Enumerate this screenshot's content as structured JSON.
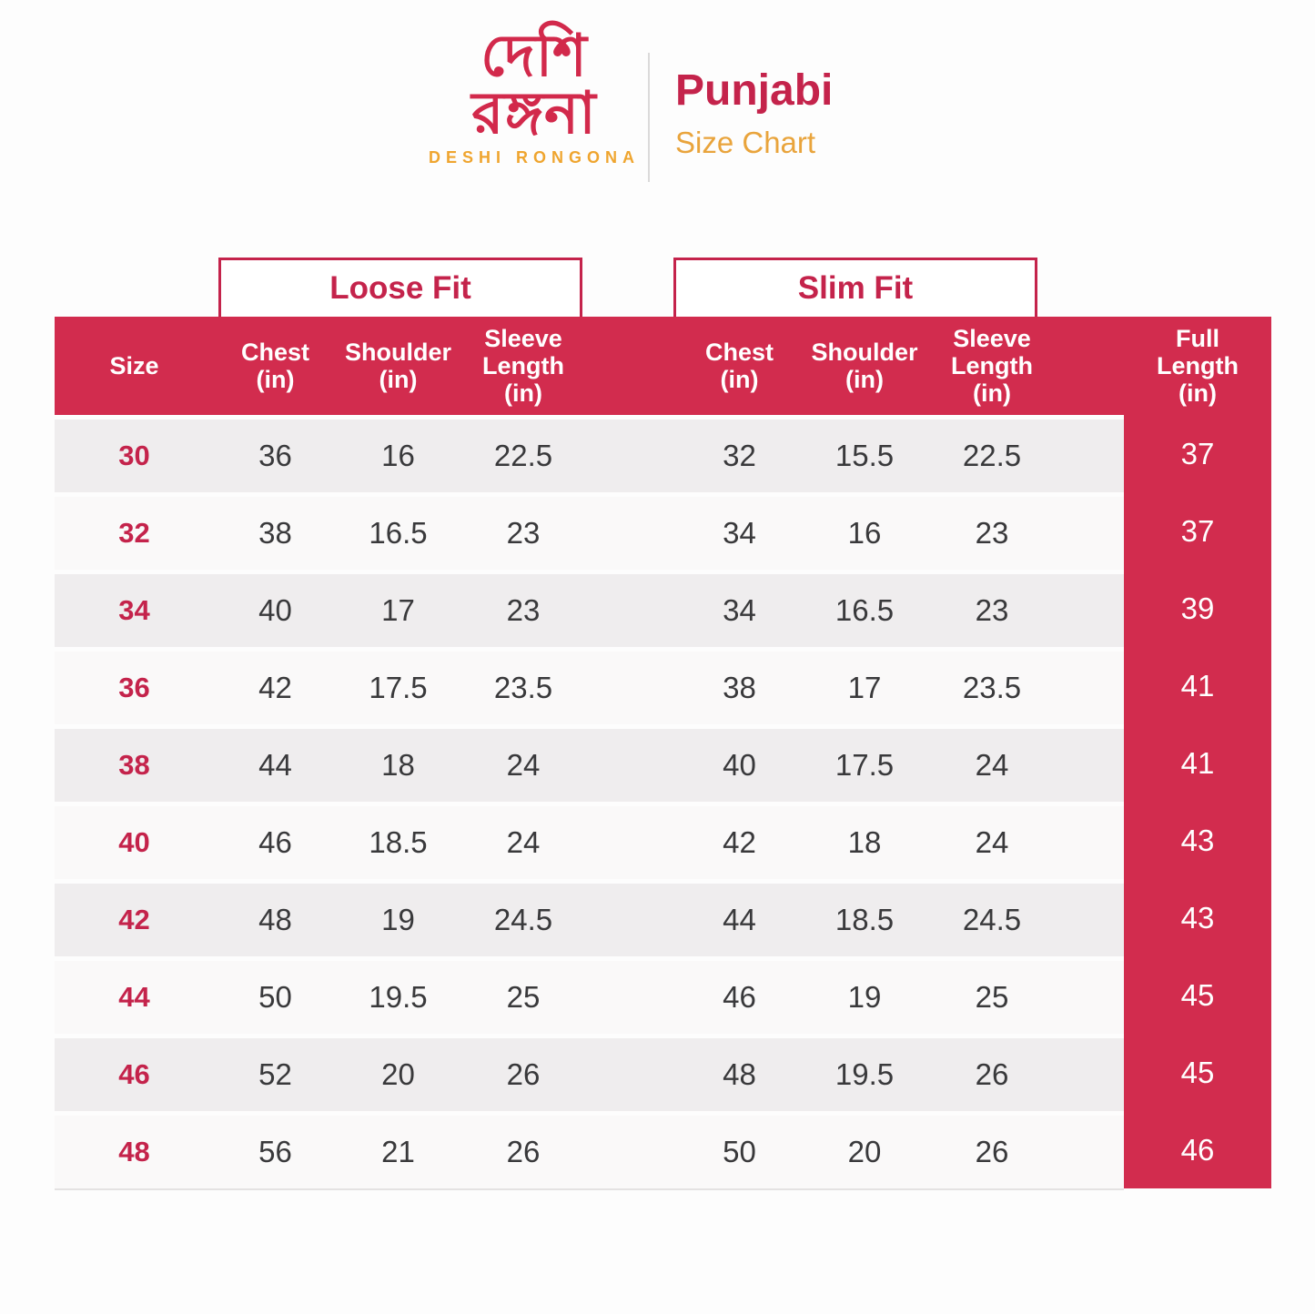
{
  "brand": {
    "logo_text_bengali": "দেশি\nরঙ্গনা",
    "logo_text_english": "DESHI RONGONA"
  },
  "header": {
    "title": "Punjabi",
    "subtitle": "Size Chart"
  },
  "fit_groups": [
    {
      "label": "Loose Fit"
    },
    {
      "label": "Slim Fit"
    }
  ],
  "table_header": {
    "labels": [
      "Size",
      "Chest\n(in)",
      "Shoulder\n(in)",
      "Sleeve\nLength\n(in)",
      "Chest\n(in)",
      "Shoulder\n(in)",
      "Sleeve\nLength\n(in)",
      "Full\nLength\n(in)"
    ]
  },
  "chart_data": {
    "type": "table",
    "title": "Punjabi Size Chart",
    "column_groups": [
      {
        "label": "Loose Fit",
        "columns": [
          "Chest (in)",
          "Shoulder (in)",
          "Sleeve Length (in)"
        ]
      },
      {
        "label": "Slim Fit",
        "columns": [
          "Chest (in)",
          "Shoulder (in)",
          "Sleeve Length (in)"
        ]
      }
    ],
    "columns": [
      "Size",
      "Loose Fit Chest (in)",
      "Loose Fit Shoulder (in)",
      "Loose Fit Sleeve Length (in)",
      "Slim Fit Chest (in)",
      "Slim Fit Shoulder (in)",
      "Slim Fit Sleeve Length (in)",
      "Full Length (in)"
    ],
    "rows": [
      [
        "30",
        "36",
        "16",
        "22.5",
        "32",
        "15.5",
        "22.5",
        "37"
      ],
      [
        "32",
        "38",
        "16.5",
        "23",
        "34",
        "16",
        "23",
        "37"
      ],
      [
        "34",
        "40",
        "17",
        "23",
        "34",
        "16.5",
        "23",
        "39"
      ],
      [
        "36",
        "42",
        "17.5",
        "23.5",
        "38",
        "17",
        "23.5",
        "41"
      ],
      [
        "38",
        "44",
        "18",
        "24",
        "40",
        "17.5",
        "24",
        "41"
      ],
      [
        "40",
        "46",
        "18.5",
        "24",
        "42",
        "18",
        "24",
        "43"
      ],
      [
        "42",
        "48",
        "19",
        "24.5",
        "44",
        "18.5",
        "24.5",
        "43"
      ],
      [
        "44",
        "50",
        "19.5",
        "25",
        "46",
        "19",
        "25",
        "45"
      ],
      [
        "46",
        "52",
        "20",
        "26",
        "48",
        "19.5",
        "26",
        "45"
      ],
      [
        "48",
        "56",
        "21",
        "26",
        "50",
        "20",
        "26",
        "46"
      ]
    ]
  },
  "colors": {
    "band_red": "#D22C4E",
    "accent_crimson": "#C4234B",
    "brand_red": "#D2294B",
    "orange": "#EFA52F",
    "row_gray": "#EFEDEE",
    "row_white": "#FAF9F9",
    "text_dark": "#39393B",
    "header_text": "#FFFFFF"
  }
}
